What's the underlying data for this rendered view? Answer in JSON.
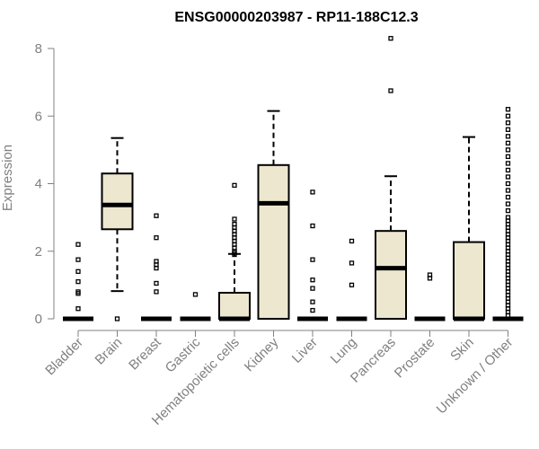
{
  "chart_data": {
    "type": "boxplot",
    "title": "ENSG00000203987 - RP11-188C12.3",
    "xlabel": "",
    "ylabel": "Expression",
    "ylim": [
      0,
      8
    ],
    "yticks": [
      0,
      2,
      4,
      6,
      8
    ],
    "box_color": "#EDE7CF",
    "categories": [
      "Bladder",
      "Brain",
      "Breast",
      "Gastric",
      "Hematopoietic cells",
      "Kidney",
      "Liver",
      "Lung",
      "Pancreas",
      "Prostate",
      "Skin",
      "Unknown / Other"
    ],
    "boxes": [
      {
        "category": "Bladder",
        "whisker_low": 0,
        "q1": 0,
        "median": 0,
        "q3": 0,
        "whisker_high": 0,
        "outliers": [
          0.3,
          0.75,
          0.8,
          1.1,
          1.4,
          1.75,
          2.2
        ]
      },
      {
        "category": "Brain",
        "whisker_low": 0.82,
        "q1": 2.65,
        "median": 3.37,
        "q3": 4.3,
        "whisker_high": 5.35,
        "outliers": [
          0
        ]
      },
      {
        "category": "Breast",
        "whisker_low": 0,
        "q1": 0,
        "median": 0,
        "q3": 0,
        "whisker_high": 0,
        "outliers": [
          0.8,
          1.05,
          1.5,
          1.6,
          1.7,
          2.4,
          3.05
        ]
      },
      {
        "category": "Gastric",
        "whisker_low": 0,
        "q1": 0,
        "median": 0,
        "q3": 0,
        "whisker_high": 0,
        "outliers": [
          0.72
        ]
      },
      {
        "category": "Hematopoietic cells",
        "whisker_low": 0,
        "q1": 0,
        "median": 0,
        "q3": 0.77,
        "whisker_high": 1.92,
        "outliers": [
          1.9,
          1.95,
          2.0,
          2.1,
          2.2,
          2.3,
          2.4,
          2.5,
          2.6,
          2.7,
          2.8,
          2.95,
          3.95
        ]
      },
      {
        "category": "Kidney",
        "whisker_low": 0,
        "q1": 0,
        "median": 3.42,
        "q3": 4.55,
        "whisker_high": 6.15,
        "outliers": []
      },
      {
        "category": "Liver",
        "whisker_low": 0,
        "q1": 0,
        "median": 0,
        "q3": 0,
        "whisker_high": 0,
        "outliers": [
          0.25,
          0.5,
          0.9,
          1.15,
          1.75,
          2.75,
          3.75
        ]
      },
      {
        "category": "Lung",
        "whisker_low": 0,
        "q1": 0,
        "median": 0,
        "q3": 0,
        "whisker_high": 0,
        "outliers": [
          1.0,
          1.65,
          2.3
        ]
      },
      {
        "category": "Pancreas",
        "whisker_low": 0,
        "q1": 0,
        "median": 1.5,
        "q3": 2.6,
        "whisker_high": 4.22,
        "outliers": [
          6.75,
          8.3
        ]
      },
      {
        "category": "Prostate",
        "whisker_low": 0,
        "q1": 0,
        "median": 0,
        "q3": 0,
        "whisker_high": 0,
        "outliers": [
          1.2,
          1.3
        ]
      },
      {
        "category": "Skin",
        "whisker_low": 0,
        "q1": 0,
        "median": 0,
        "q3": 2.27,
        "whisker_high": 5.38,
        "outliers": []
      },
      {
        "category": "Unknown / Other",
        "whisker_low": 0,
        "q1": 0,
        "median": 0,
        "q3": 0,
        "whisker_high": 0,
        "outliers": [
          0.1,
          0.2,
          0.3,
          0.4,
          0.5,
          0.6,
          0.7,
          0.8,
          0.9,
          1.0,
          1.1,
          1.2,
          1.3,
          1.4,
          1.5,
          1.6,
          1.7,
          1.8,
          1.9,
          2.0,
          2.1,
          2.2,
          2.3,
          2.4,
          2.5,
          2.6,
          2.7,
          2.8,
          2.9,
          3.0,
          3.2,
          3.4,
          3.6,
          3.8,
          4.0,
          4.2,
          4.4,
          4.6,
          4.8,
          5.0,
          5.2,
          5.4,
          5.6,
          5.8,
          6.0,
          6.2
        ]
      }
    ]
  }
}
